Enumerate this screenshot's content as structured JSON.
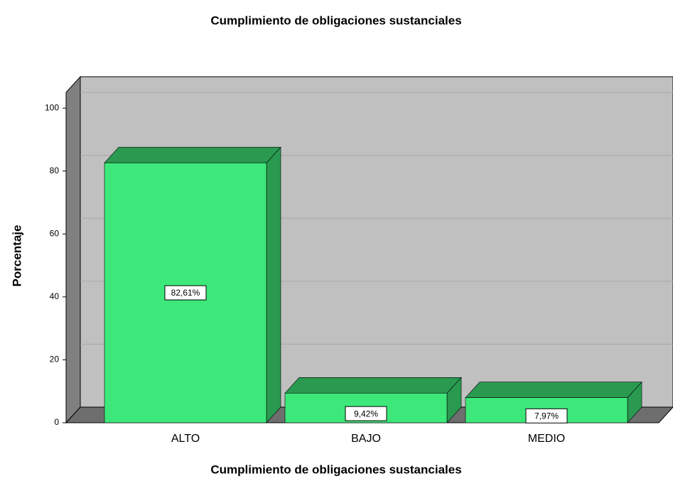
{
  "chart_data": {
    "type": "bar3d",
    "title": "Cumplimiento de obligaciones sustanciales",
    "x_label": "Cumplimiento de obligaciones sustanciales",
    "y_label": "Porcentaje",
    "categories": [
      "ALTO",
      "BAJO",
      "MEDIO"
    ],
    "values": [
      82.61,
      9.42,
      7.97
    ],
    "value_labels": [
      "82,61%",
      "9,42%",
      "7,97%"
    ],
    "color": "#3de87a",
    "top_color": "#2a9a50",
    "ylim": [
      0,
      105
    ],
    "yticks": [
      0,
      20,
      40,
      60,
      80,
      100
    ],
    "grid": true
  }
}
